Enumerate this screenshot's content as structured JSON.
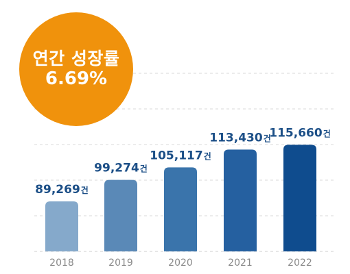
{
  "badge": {
    "title": "연간 성장률",
    "value": "6.69%",
    "color": "#f0920c"
  },
  "chart_data": {
    "type": "bar",
    "categories": [
      "2018",
      "2019",
      "2020",
      "2021",
      "2022"
    ],
    "values": [
      89269,
      99274,
      105117,
      113430,
      115660
    ],
    "value_labels": [
      {
        "number": "89,269",
        "unit": "건"
      },
      {
        "number": "99,274",
        "unit": "건"
      },
      {
        "number": "105,117",
        "unit": "건"
      },
      {
        "number": "113,430",
        "unit": "건"
      },
      {
        "number": "115,660",
        "unit": "건"
      }
    ],
    "bar_colors": [
      "#85a9cb",
      "#5a89b7",
      "#3a74ab",
      "#2560a0",
      "#0f4c8e"
    ],
    "label_color": "#1c4f87",
    "tick_color": "#8a8a8a",
    "grid": "dashed"
  }
}
